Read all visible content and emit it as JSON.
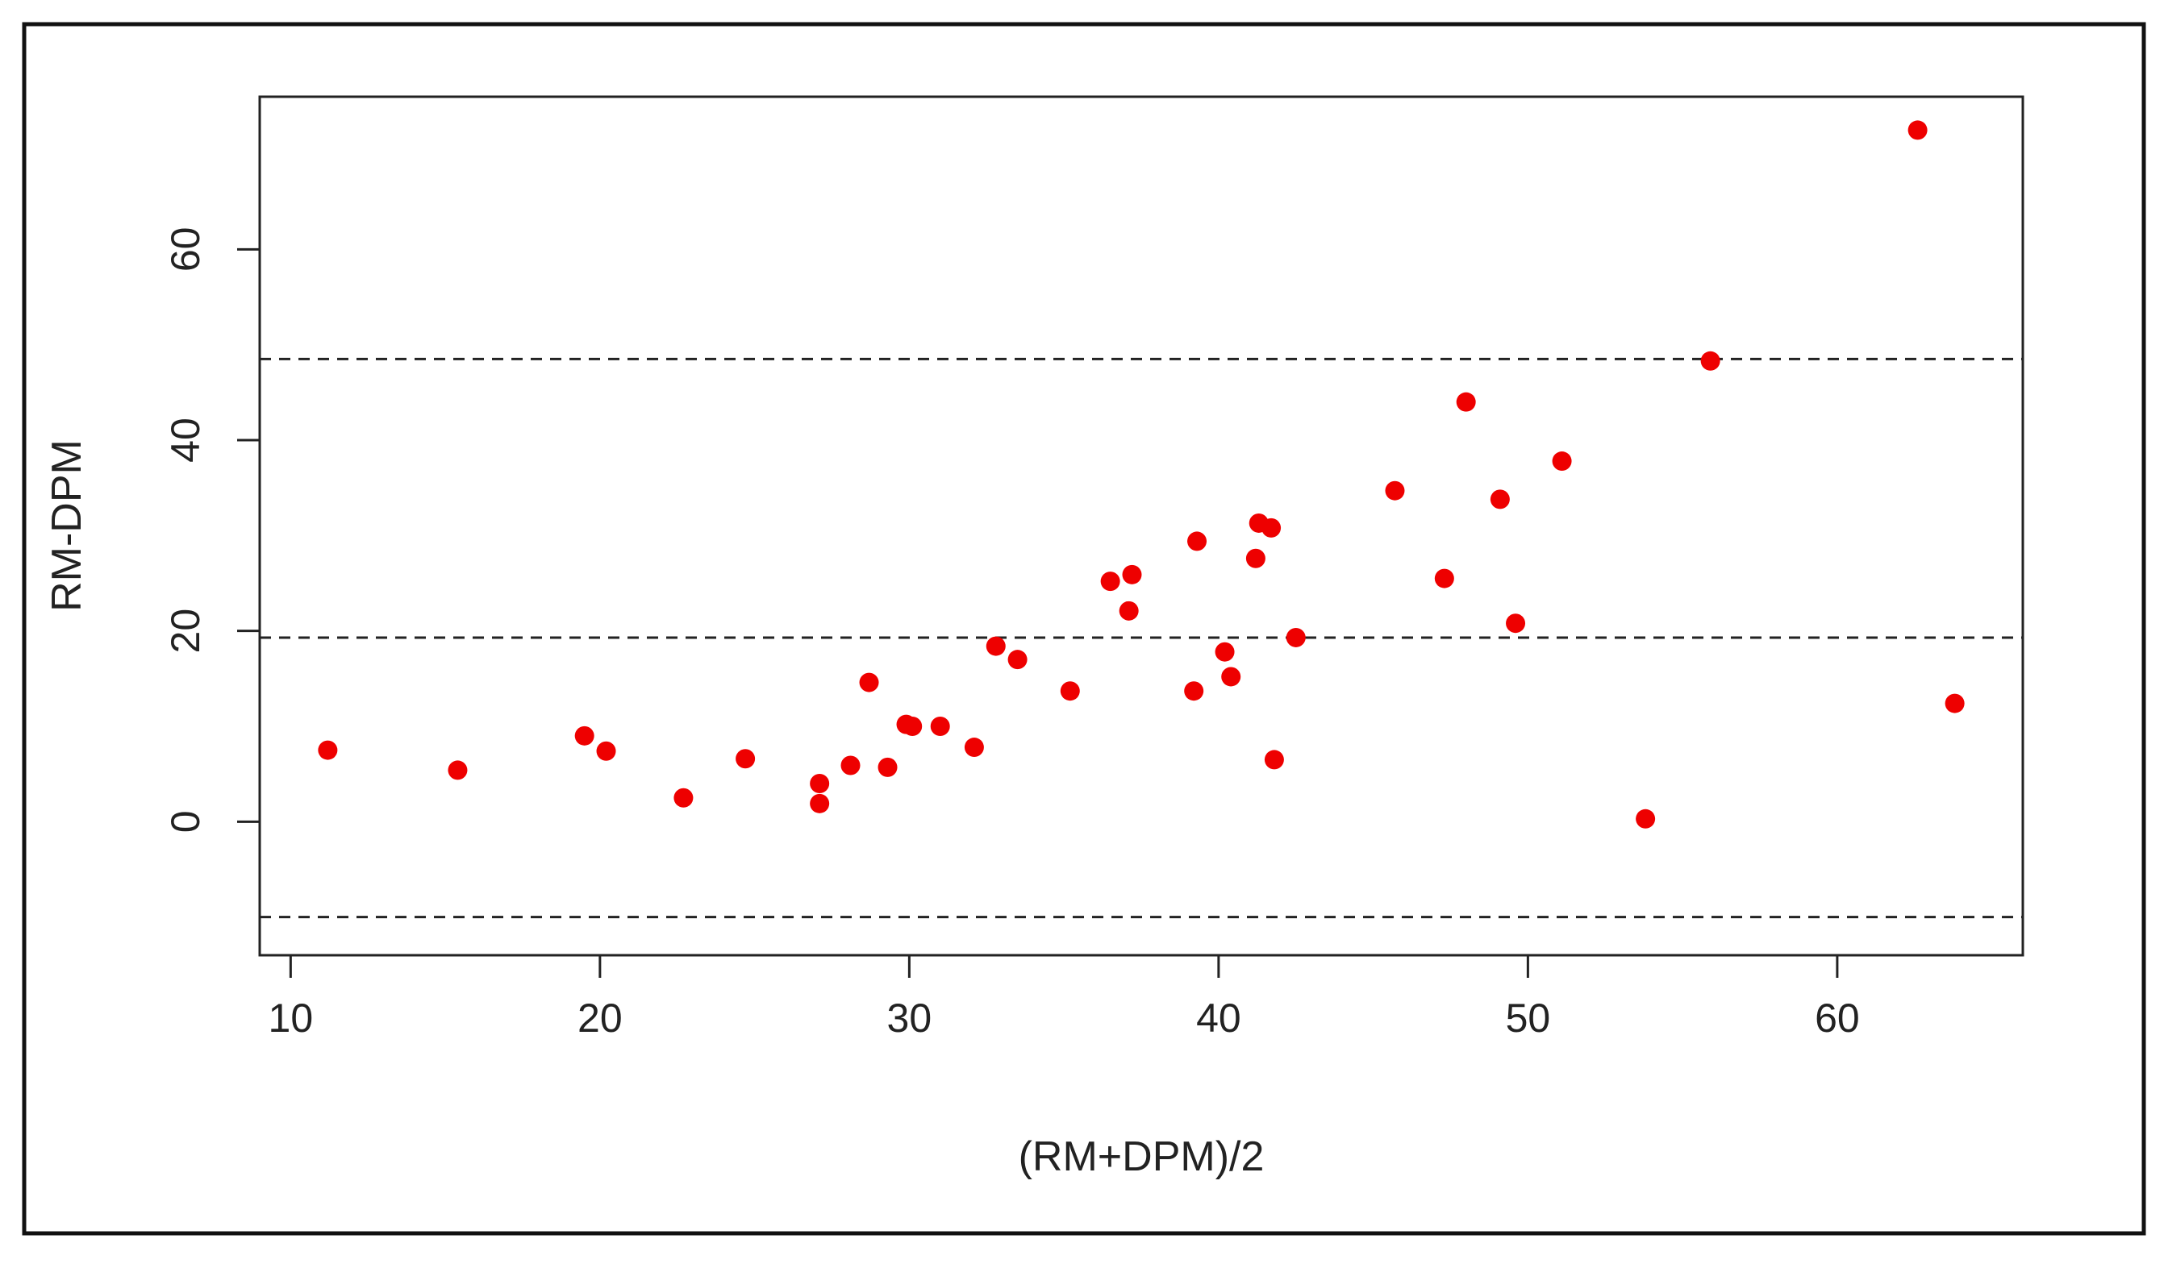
{
  "chart_data": {
    "type": "scatter",
    "title": "",
    "xlabel": "(RM+DPM)/2",
    "ylabel": "RM-DPM",
    "xlim": [
      9,
      66
    ],
    "ylim": [
      -14,
      76
    ],
    "xticks": [
      10,
      20,
      30,
      40,
      50,
      60
    ],
    "yticks": [
      0,
      20,
      40,
      60
    ],
    "grid": false,
    "point_color": "#ee0000",
    "reference_lines": [
      {
        "y": 48.5,
        "style": "dashed"
      },
      {
        "y": 19.3,
        "style": "dashed"
      },
      {
        "y": -10.0,
        "style": "dashed"
      }
    ],
    "points": [
      {
        "x": 11.2,
        "y": 7.5
      },
      {
        "x": 15.4,
        "y": 5.4
      },
      {
        "x": 19.5,
        "y": 9.0
      },
      {
        "x": 20.2,
        "y": 7.4
      },
      {
        "x": 22.7,
        "y": 2.5
      },
      {
        "x": 24.7,
        "y": 6.6
      },
      {
        "x": 27.1,
        "y": 4.0
      },
      {
        "x": 27.1,
        "y": 1.9
      },
      {
        "x": 28.1,
        "y": 5.9
      },
      {
        "x": 28.7,
        "y": 14.6
      },
      {
        "x": 29.3,
        "y": 5.7
      },
      {
        "x": 29.9,
        "y": 10.2
      },
      {
        "x": 30.1,
        "y": 10.0
      },
      {
        "x": 31.0,
        "y": 10.0
      },
      {
        "x": 32.1,
        "y": 7.8
      },
      {
        "x": 32.8,
        "y": 18.4
      },
      {
        "x": 33.5,
        "y": 17.0
      },
      {
        "x": 35.2,
        "y": 13.7
      },
      {
        "x": 36.5,
        "y": 25.2
      },
      {
        "x": 37.1,
        "y": 22.1
      },
      {
        "x": 37.2,
        "y": 25.9
      },
      {
        "x": 39.2,
        "y": 13.7
      },
      {
        "x": 39.3,
        "y": 29.4
      },
      {
        "x": 40.2,
        "y": 17.8
      },
      {
        "x": 40.4,
        "y": 15.2
      },
      {
        "x": 41.2,
        "y": 27.6
      },
      {
        "x": 41.3,
        "y": 31.3
      },
      {
        "x": 41.7,
        "y": 30.8
      },
      {
        "x": 41.8,
        "y": 6.5
      },
      {
        "x": 42.5,
        "y": 19.3
      },
      {
        "x": 45.7,
        "y": 34.7
      },
      {
        "x": 47.3,
        "y": 25.5
      },
      {
        "x": 48.0,
        "y": 44.0
      },
      {
        "x": 49.1,
        "y": 33.8
      },
      {
        "x": 49.6,
        "y": 20.8
      },
      {
        "x": 51.1,
        "y": 37.8
      },
      {
        "x": 53.8,
        "y": 0.3
      },
      {
        "x": 55.9,
        "y": 48.3
      },
      {
        "x": 62.6,
        "y": 72.5
      },
      {
        "x": 63.8,
        "y": 12.4
      }
    ]
  }
}
